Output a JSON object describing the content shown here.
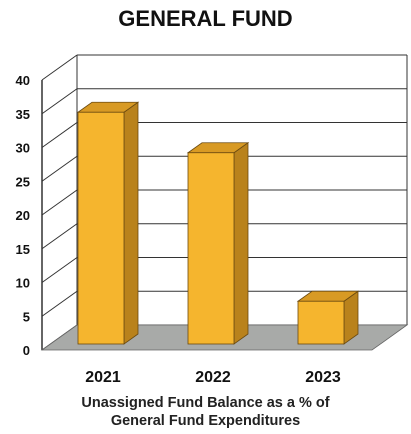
{
  "chart_data": {
    "type": "bar",
    "title": "GENERAL FUND",
    "xlabel_lines": [
      "Unassigned Fund Balance as a % of",
      "General Fund Expenditures"
    ],
    "ylabel": "",
    "categories": [
      "2021",
      "2022",
      "2023"
    ],
    "values": [
      37,
      31,
      9
    ],
    "ylim": [
      0,
      40
    ],
    "yticks": [
      "0",
      "5",
      "10",
      "15",
      "20",
      "25",
      "30",
      "35",
      "40"
    ],
    "grid": true,
    "style": "3d",
    "legend": "none",
    "colors": {
      "bar_front": "#f5b52e",
      "bar_side": "#b9821c",
      "bar_top": "#d89a24",
      "floor": "#a8aaa8",
      "grid": "#333333"
    }
  }
}
